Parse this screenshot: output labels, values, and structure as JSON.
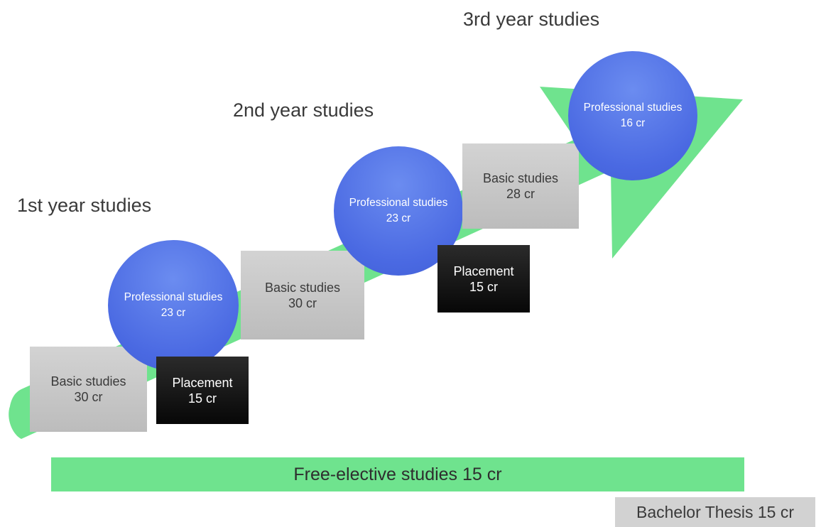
{
  "year_labels": {
    "year1": "1st year studies",
    "year2": "2nd year studies",
    "year3": "3rd year studies"
  },
  "year1": {
    "basic": {
      "title": "Basic studies",
      "credits": "30 cr"
    },
    "professional": {
      "title": "Professional studies",
      "credits": "23 cr"
    },
    "placement": {
      "title": "Placement",
      "credits": "15 cr"
    }
  },
  "year2": {
    "basic": {
      "title": "Basic studies",
      "credits": "30 cr"
    },
    "professional": {
      "title": "Professional studies",
      "credits": "23 cr"
    },
    "placement": {
      "title": "Placement",
      "credits": "15 cr"
    }
  },
  "year3": {
    "basic": {
      "title": "Basic studies",
      "credits": "28 cr"
    },
    "professional": {
      "title": "Professional studies",
      "credits": "16 cr"
    }
  },
  "free_elective": "Free-elective studies 15 cr",
  "bachelor_thesis": "Bachelor Thesis 15 cr",
  "colors": {
    "arrow_green": "#6fe38e",
    "professional_blue": "#4a69e2",
    "basic_gray": "#c8c8c8",
    "placement_black": "#111111"
  }
}
